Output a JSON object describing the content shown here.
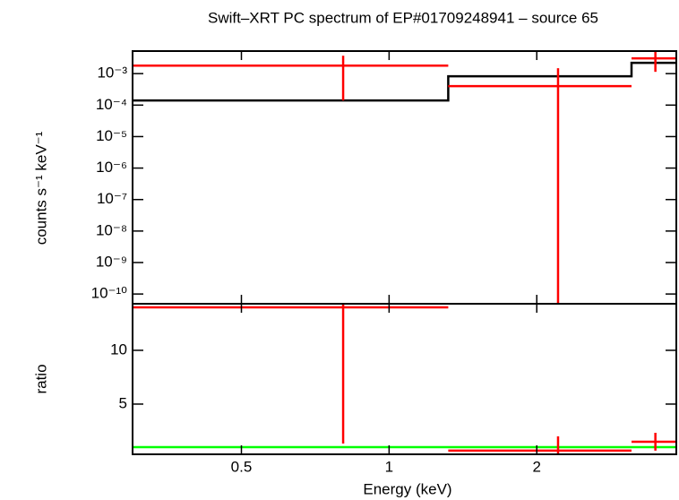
{
  "chart_data": [
    {
      "type": "spectrum",
      "title": "Swift–XRT PC spectrum of EP#01709248941 – source 65",
      "ylabel": "counts s⁻¹ keV⁻¹",
      "xscale": "log",
      "yscale": "log",
      "xlim": [
        0.3,
        3.85
      ],
      "ylim": [
        4.9e-11,
        0.0052
      ],
      "yticks": [
        {
          "value": 0.001,
          "label": "10⁻³"
        },
        {
          "value": 0.0001,
          "label": "10⁻⁴"
        },
        {
          "value": 1e-05,
          "label": "10⁻⁵"
        },
        {
          "value": 1e-06,
          "label": "10⁻⁶"
        },
        {
          "value": 1e-07,
          "label": "10⁻⁷"
        },
        {
          "value": 1e-08,
          "label": "10⁻⁸"
        },
        {
          "value": 1e-09,
          "label": "10⁻⁹"
        },
        {
          "value": 1e-10,
          "label": "10⁻¹⁰"
        }
      ],
      "data": {
        "color": "#ff0000",
        "x": [
          0.806,
          2.21,
          3.49
        ],
        "x_lo": [
          0.3,
          1.32,
          3.12
        ],
        "x_hi": [
          1.32,
          3.12,
          3.85
        ],
        "values": [
          0.0018,
          0.0004,
          0.00305
        ],
        "y_lo": [
          0.00014,
          0,
          0.00114
        ],
        "y_hi": [
          0.0037,
          0.00148,
          0.0055
        ]
      },
      "model": {
        "color": "#000000",
        "bins": [
          0.3,
          1.32,
          3.12,
          3.85
        ],
        "values": [
          0.00014,
          0.00082,
          0.0022
        ]
      }
    },
    {
      "type": "ratio",
      "ylabel": "ratio",
      "xlabel": "Energy (keV)",
      "xscale": "log",
      "xlim": [
        0.3,
        3.85
      ],
      "ylim": [
        0.33,
        14.33
      ],
      "xticks": [
        0.5,
        1,
        2
      ],
      "yticks": [
        5,
        10
      ],
      "data": {
        "color": "#ff0000",
        "x": [
          0.806,
          2.21,
          3.49
        ],
        "x_lo": [
          0.3,
          1.32,
          3.12
        ],
        "x_hi": [
          1.32,
          3.12,
          3.85
        ],
        "values": [
          14.0,
          0.67,
          1.5
        ],
        "y_lo": [
          1.33,
          0.33,
          0.67
        ],
        "y_hi": [
          14.33,
          2.0,
          2.33
        ]
      },
      "reference": {
        "value": 1,
        "color": "#00ff00"
      }
    }
  ]
}
